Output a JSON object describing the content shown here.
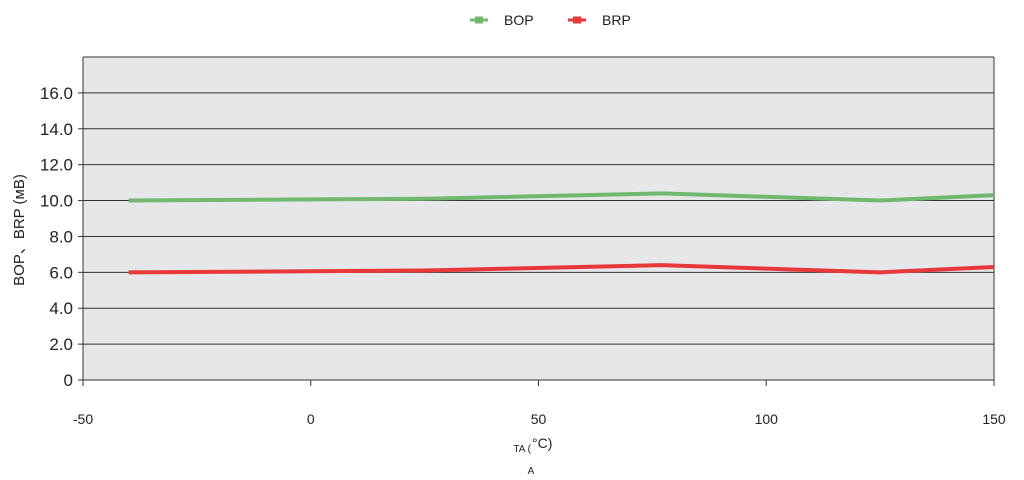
{
  "chart_data": {
    "type": "line",
    "title": "",
    "ylabel": "BOP、BRP (мВ)",
    "xlabel_main": "TA (",
    "xlabel_unit": "°C)",
    "xlabel_sub": "A",
    "xlim": [
      -50,
      150
    ],
    "ylim": [
      0,
      18
    ],
    "x_ticks": [
      "-50",
      "0",
      "50",
      "100",
      "150"
    ],
    "y_ticks": [
      "0",
      "2.0",
      "4.0",
      "6.0",
      "8.0",
      "10.0",
      "12.0",
      "14.0",
      "16.0"
    ],
    "grid": true,
    "legend_position": "top-center",
    "series": [
      {
        "name": "BOP",
        "color": "#72b86e",
        "x": [
          -40,
          25,
          77,
          125,
          150
        ],
        "y": [
          10.0,
          10.1,
          10.4,
          10.0,
          10.3
        ]
      },
      {
        "name": "BRP",
        "color": "#e8383a",
        "x": [
          -40,
          25,
          77,
          125,
          150
        ],
        "y": [
          6.0,
          6.1,
          6.4,
          6.0,
          6.3
        ]
      }
    ]
  }
}
